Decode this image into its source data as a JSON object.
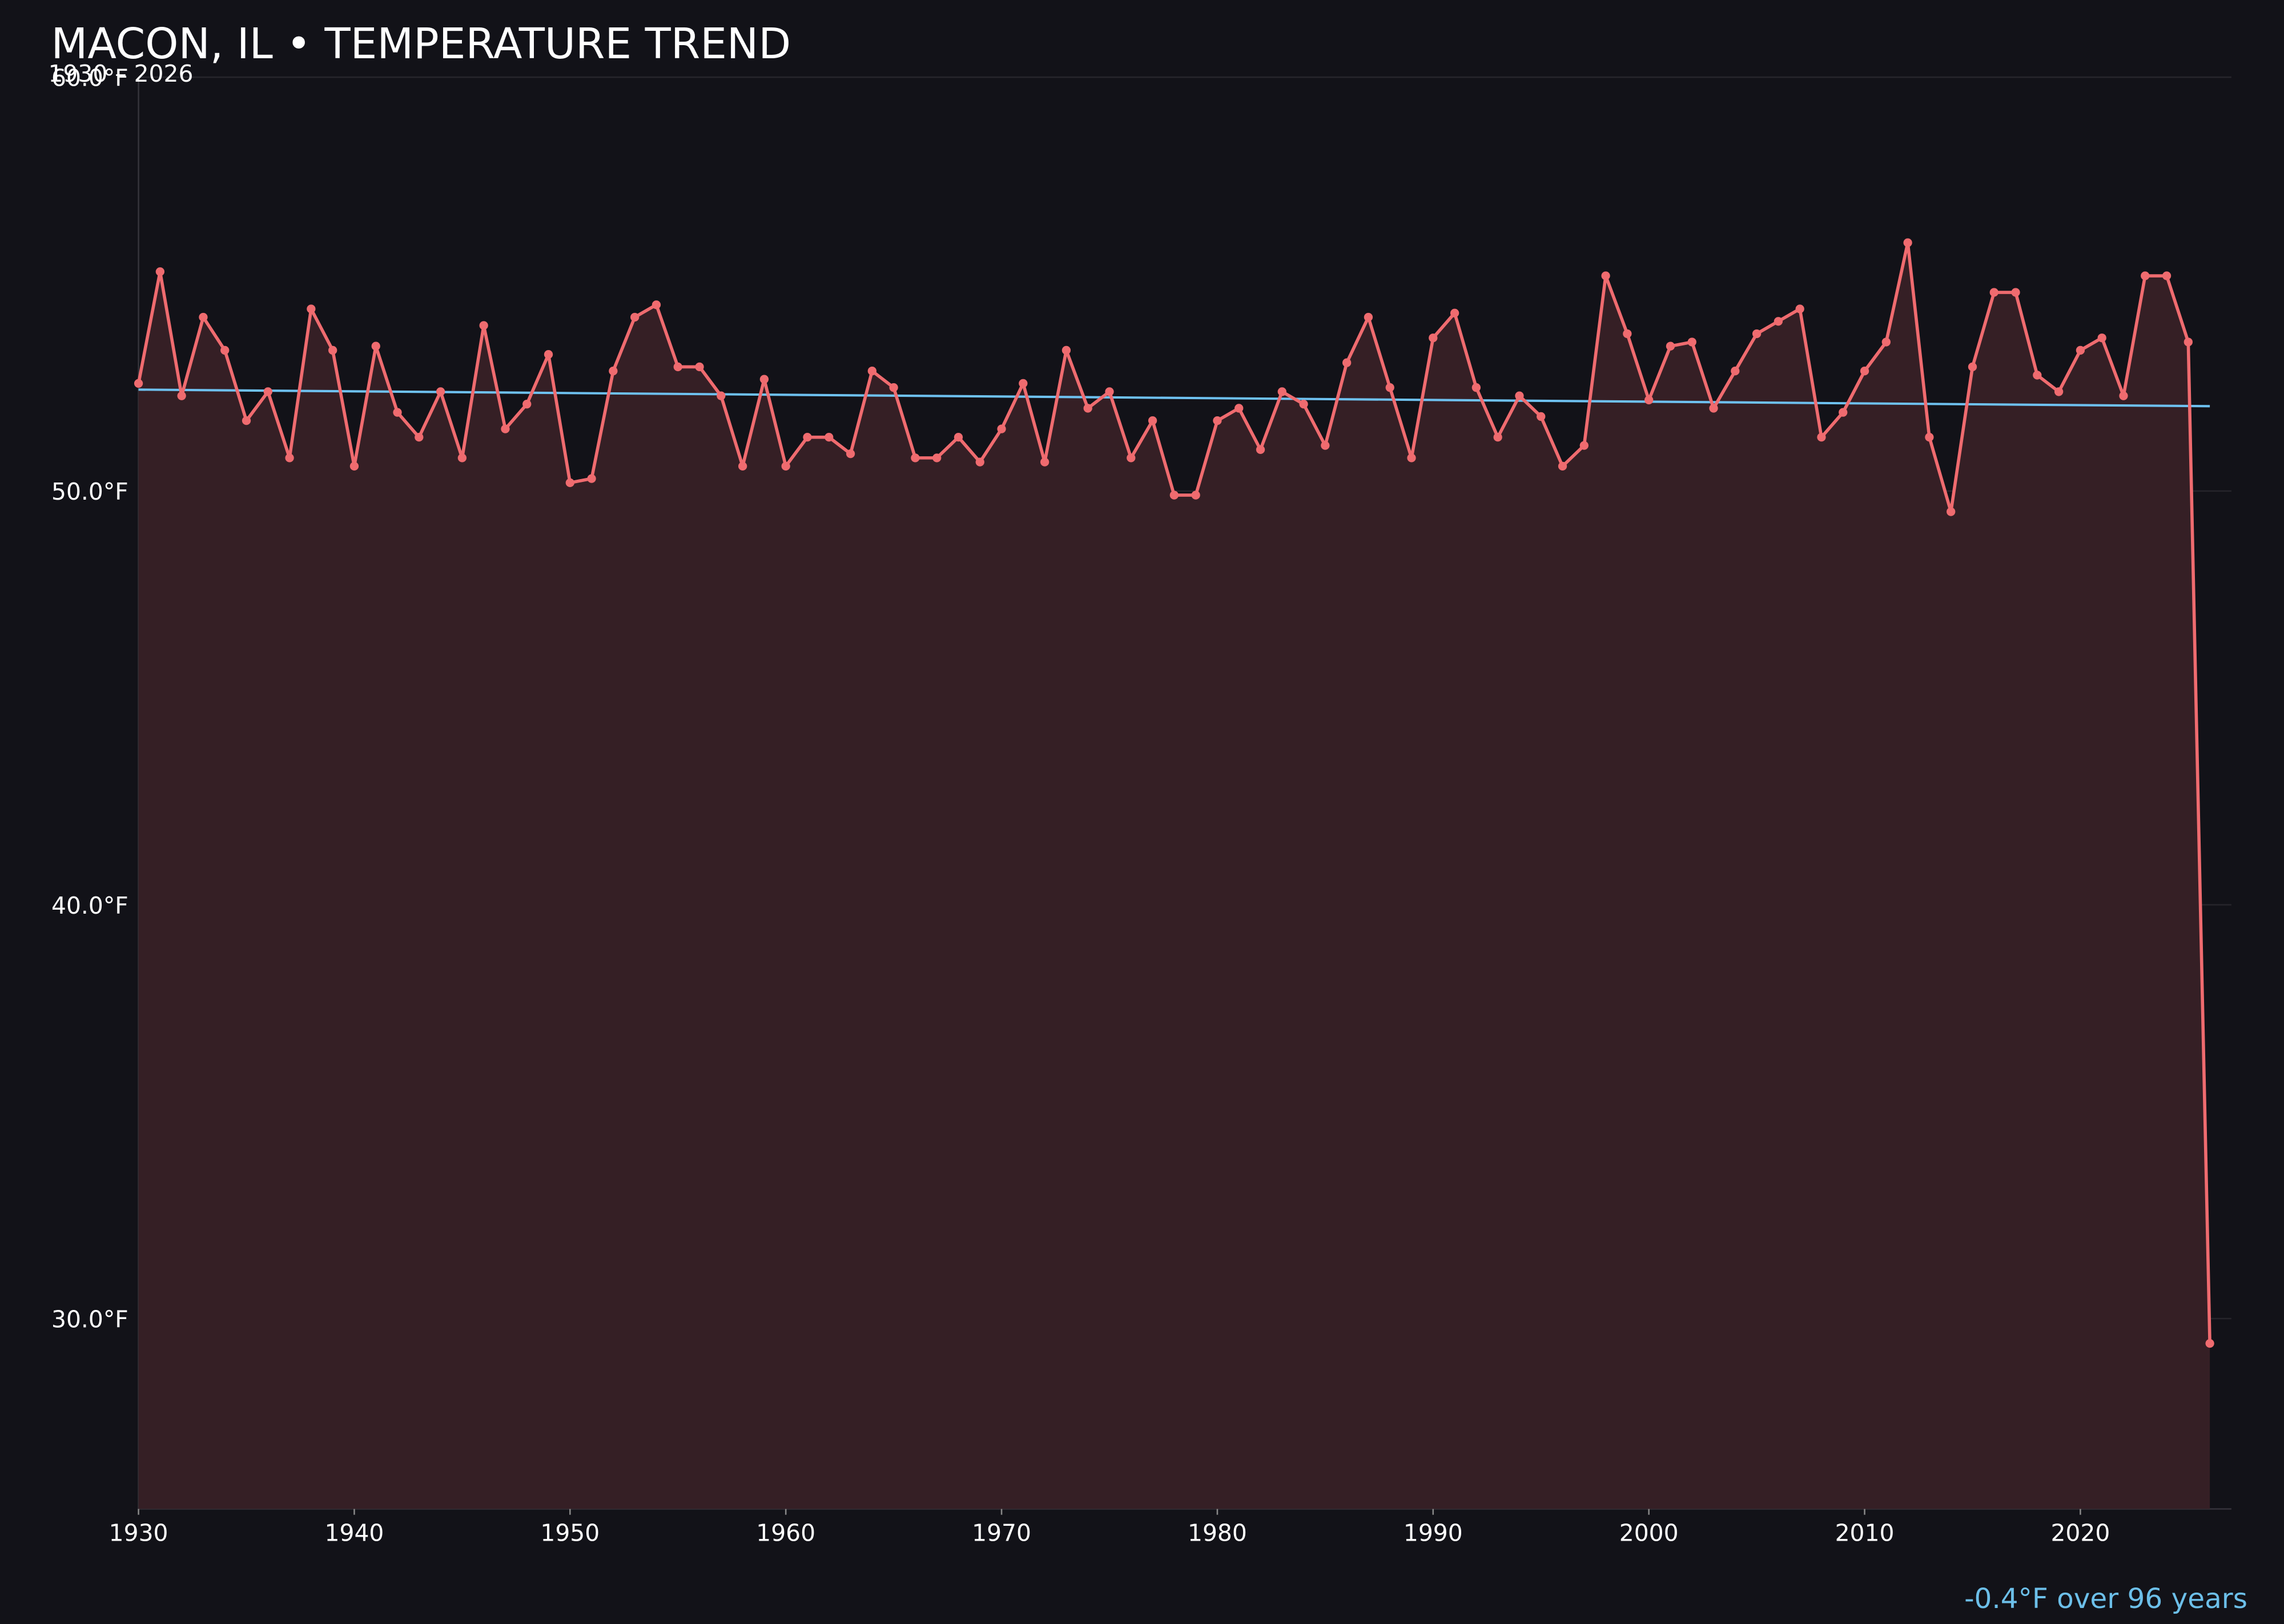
{
  "chart_data": {
    "type": "line",
    "title": "MACON, IL • TEMPERATURE TREND",
    "subtitle": "1930 – 2026",
    "annotation": "-0.4°F over 96 years",
    "x": [
      1930,
      1931,
      1932,
      1933,
      1934,
      1935,
      1936,
      1937,
      1938,
      1939,
      1940,
      1941,
      1942,
      1943,
      1944,
      1945,
      1946,
      1947,
      1948,
      1949,
      1950,
      1951,
      1952,
      1953,
      1954,
      1955,
      1956,
      1957,
      1958,
      1959,
      1960,
      1961,
      1962,
      1963,
      1964,
      1965,
      1966,
      1967,
      1968,
      1969,
      1970,
      1971,
      1972,
      1973,
      1974,
      1975,
      1976,
      1977,
      1978,
      1979,
      1980,
      1981,
      1982,
      1983,
      1984,
      1985,
      1986,
      1987,
      1988,
      1989,
      1990,
      1991,
      1992,
      1993,
      1994,
      1995,
      1996,
      1997,
      1998,
      1999,
      2000,
      2001,
      2002,
      2003,
      2004,
      2005,
      2006,
      2007,
      2008,
      2009,
      2010,
      2011,
      2012,
      2013,
      2014,
      2015,
      2016,
      2017,
      2018,
      2019,
      2020,
      2021,
      2022,
      2023,
      2024,
      2025,
      2026
    ],
    "values": [
      52.6,
      55.3,
      52.3,
      54.2,
      53.4,
      51.7,
      52.4,
      50.8,
      54.4,
      53.4,
      50.6,
      53.5,
      51.9,
      51.3,
      52.4,
      50.8,
      54.0,
      51.5,
      52.1,
      53.3,
      50.2,
      50.3,
      52.9,
      54.2,
      54.5,
      53.0,
      53.0,
      52.3,
      50.6,
      52.7,
      50.6,
      51.3,
      51.3,
      50.9,
      52.9,
      52.5,
      50.8,
      50.8,
      51.3,
      50.7,
      51.5,
      52.6,
      50.7,
      53.4,
      52.0,
      52.4,
      50.8,
      51.7,
      49.9,
      49.9,
      51.7,
      52.0,
      51.0,
      52.4,
      52.1,
      51.1,
      53.1,
      54.2,
      52.5,
      50.8,
      53.7,
      54.3,
      52.5,
      51.3,
      52.3,
      51.8,
      50.6,
      51.1,
      55.2,
      53.8,
      52.2,
      53.5,
      53.6,
      52.0,
      52.9,
      53.8,
      54.1,
      54.4,
      51.3,
      51.9,
      52.9,
      53.6,
      56.0,
      51.3,
      49.5,
      53.0,
      54.8,
      54.8,
      52.8,
      52.4,
      53.4,
      53.7,
      52.3,
      55.2,
      55.2,
      53.6,
      29.4
    ],
    "color": "#ef6b6f",
    "fill_color": "#351f25",
    "trend": {
      "x": [
        1930,
        2026
      ],
      "values": [
        52.45,
        52.05
      ],
      "color": "#6ec1f0"
    },
    "xlim": [
      1930,
      2027
    ],
    "xticks": [
      1930,
      1940,
      1950,
      1960,
      1970,
      1980,
      1990,
      2000,
      2010,
      2020
    ],
    "ylim": [
      25.4,
      60
    ],
    "yticks": [
      {
        "value": 30,
        "label": "30.0°F"
      },
      {
        "value": 40,
        "label": "40.0°F"
      },
      {
        "value": 50,
        "label": "50.0°F"
      },
      {
        "value": 60,
        "label": "60.0°F"
      }
    ],
    "grid": true
  }
}
